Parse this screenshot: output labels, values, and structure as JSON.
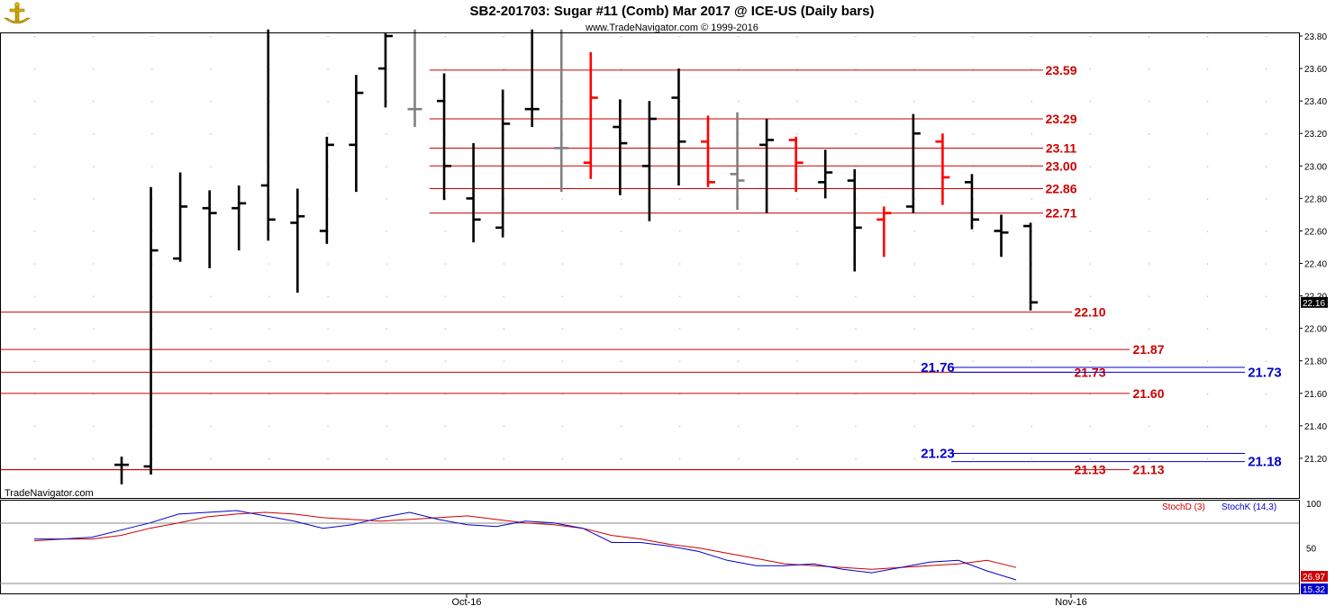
{
  "title": "SB2-201703:  Sugar #11 (Comb) Mar 2017 @ ICE-US  (Daily bars)",
  "subtitle": "www.TradeNavigator.com © 1999-2016",
  "watermark": "TradeNavigator.com",
  "colors": {
    "up_bar": "#000000",
    "down_bar": "#ff0000",
    "neutral_bar": "#808080",
    "red_line": "#cc0000",
    "blue_line": "#0000cc",
    "grid_dot": "#b0b0b0"
  },
  "chart_data": [
    {
      "type": "ohlc",
      "ylim": [
        21.03,
        23.84
      ],
      "y_ticks": [
        "23.80",
        "23.60",
        "23.40",
        "23.20",
        "23.00",
        "22.80",
        "22.60",
        "22.40",
        "22.20",
        "22.00",
        "21.80",
        "21.60",
        "21.40",
        "21.20"
      ],
      "x_ticks": [
        "Oct-16",
        "Nov-16"
      ],
      "last_price": "22.16",
      "bars": [
        {
          "o": 21.16,
          "h": 21.21,
          "l": 21.04,
          "c": 21.16,
          "color": "black"
        },
        {
          "o": 21.15,
          "h": 22.87,
          "l": 21.1,
          "c": 22.48,
          "color": "black"
        },
        {
          "o": 22.43,
          "h": 22.96,
          "l": 22.41,
          "c": 22.75,
          "color": "black"
        },
        {
          "o": 22.74,
          "h": 22.85,
          "l": 22.37,
          "c": 22.71,
          "color": "black"
        },
        {
          "o": 22.74,
          "h": 22.88,
          "l": 22.48,
          "c": 22.77,
          "color": "black"
        },
        {
          "o": 22.88,
          "h": 23.84,
          "l": 22.54,
          "c": 22.67,
          "color": "black"
        },
        {
          "o": 22.65,
          "h": 22.86,
          "l": 22.22,
          "c": 22.69,
          "color": "black"
        },
        {
          "o": 22.6,
          "h": 23.18,
          "l": 22.52,
          "c": 23.13,
          "color": "black"
        },
        {
          "o": 23.13,
          "h": 23.56,
          "l": 22.84,
          "c": 23.45,
          "color": "black"
        },
        {
          "o": 23.6,
          "h": 23.82,
          "l": 23.36,
          "c": 23.8,
          "color": "black"
        },
        {
          "o": 23.35,
          "h": 23.84,
          "l": 23.24,
          "c": 23.35,
          "color": "gray"
        },
        {
          "o": 23.4,
          "h": 23.57,
          "l": 22.79,
          "c": 23.0,
          "color": "black"
        },
        {
          "o": 22.8,
          "h": 23.14,
          "l": 22.53,
          "c": 22.67,
          "color": "black"
        },
        {
          "o": 22.62,
          "h": 23.47,
          "l": 22.56,
          "c": 23.26,
          "color": "black"
        },
        {
          "o": 23.35,
          "h": 23.84,
          "l": 23.24,
          "c": 23.35,
          "color": "black"
        },
        {
          "o": 23.11,
          "h": 23.84,
          "l": 22.84,
          "c": 23.11,
          "color": "gray"
        },
        {
          "o": 23.02,
          "h": 23.7,
          "l": 22.92,
          "c": 23.42,
          "color": "red"
        },
        {
          "o": 23.24,
          "h": 23.41,
          "l": 22.82,
          "c": 23.14,
          "color": "black"
        },
        {
          "o": 23.0,
          "h": 23.4,
          "l": 22.66,
          "c": 23.29,
          "color": "black"
        },
        {
          "o": 23.42,
          "h": 23.6,
          "l": 22.88,
          "c": 23.15,
          "color": "black"
        },
        {
          "o": 23.15,
          "h": 23.31,
          "l": 22.87,
          "c": 22.9,
          "color": "red"
        },
        {
          "o": 22.95,
          "h": 23.33,
          "l": 22.73,
          "c": 22.91,
          "color": "gray"
        },
        {
          "o": 23.13,
          "h": 23.29,
          "l": 22.71,
          "c": 23.16,
          "color": "black"
        },
        {
          "o": 23.16,
          "h": 23.18,
          "l": 22.84,
          "c": 23.02,
          "color": "red"
        },
        {
          "o": 22.9,
          "h": 23.1,
          "l": 22.8,
          "c": 22.96,
          "color": "black"
        },
        {
          "o": 22.91,
          "h": 22.98,
          "l": 22.35,
          "c": 22.62,
          "color": "black"
        },
        {
          "o": 22.67,
          "h": 22.75,
          "l": 22.44,
          "c": 22.71,
          "color": "red"
        },
        {
          "o": 22.75,
          "h": 23.32,
          "l": 22.71,
          "c": 23.2,
          "color": "black"
        },
        {
          "o": 23.15,
          "h": 23.2,
          "l": 22.76,
          "c": 22.93,
          "color": "red"
        },
        {
          "o": 22.9,
          "h": 22.95,
          "l": 22.61,
          "c": 22.67,
          "color": "black"
        },
        {
          "o": 22.6,
          "h": 22.7,
          "l": 22.44,
          "c": 22.59,
          "color": "black"
        },
        {
          "o": 22.63,
          "h": 22.65,
          "l": 22.11,
          "c": 22.16,
          "color": "black"
        }
      ],
      "levels": [
        {
          "value": 23.59,
          "label": "23.59",
          "color": "red",
          "start_bar": 10.5,
          "label_slot": "inner"
        },
        {
          "value": 23.29,
          "label": "23.29",
          "color": "red",
          "start_bar": 10.5,
          "label_slot": "inner"
        },
        {
          "value": 23.11,
          "label": "23.11",
          "color": "red",
          "start_bar": 10.5,
          "label_slot": "inner"
        },
        {
          "value": 23.0,
          "label": "23.00",
          "color": "red",
          "start_bar": 10.5,
          "label_slot": "inner"
        },
        {
          "value": 22.86,
          "label": "22.86",
          "color": "red",
          "start_bar": 10.5,
          "label_slot": "inner"
        },
        {
          "value": 22.71,
          "label": "22.71",
          "color": "red",
          "start_bar": 10.5,
          "label_slot": "inner"
        },
        {
          "value": 22.1,
          "label": "22.10",
          "color": "red",
          "start_bar": -5,
          "label_slot": "mid"
        },
        {
          "value": 21.87,
          "label": "21.87",
          "color": "red",
          "start_bar": -5,
          "label_slot": "outer"
        },
        {
          "value": 21.73,
          "label": "21.73",
          "color": "red",
          "start_bar": -5,
          "label_slot": "mid"
        },
        {
          "value": 21.6,
          "label": "21.60",
          "color": "red",
          "start_bar": -5,
          "label_slot": "outer"
        },
        {
          "value": 21.13,
          "label": "21.13",
          "color": "red",
          "start_bar": -5,
          "label_slot": "mid"
        },
        {
          "value": 21.13,
          "label": "21.13",
          "color": "red",
          "start_bar": -5,
          "label_slot": "outer"
        },
        {
          "value": 21.76,
          "label": "21.76",
          "color": "blue",
          "start_bar": 28.3,
          "label_slot": "blue_left"
        },
        {
          "value": 21.73,
          "label": "21.73",
          "color": "blue",
          "start_bar": 28.3,
          "label_slot": "blue_right"
        },
        {
          "value": 21.23,
          "label": "21.23",
          "color": "blue",
          "start_bar": 28.3,
          "label_slot": "blue_left"
        },
        {
          "value": 21.18,
          "label": "21.18",
          "color": "blue",
          "start_bar": 28.3,
          "label_slot": "blue_right"
        }
      ]
    },
    {
      "type": "line",
      "y_ticks": [
        "100",
        "50"
      ],
      "ylim": [
        0,
        100
      ],
      "legend": [
        {
          "name": "StochD (3)",
          "color": "red"
        },
        {
          "name": "StochK (14,3)",
          "color": "blue"
        }
      ],
      "last_values": {
        "stochD": "26.97",
        "stochK": "15.32"
      },
      "series": [
        {
          "name": "StochD (3)",
          "color": "red",
          "values": [
            58,
            60,
            60,
            64,
            72,
            78,
            85,
            88,
            90,
            88,
            84,
            82,
            80,
            82,
            84,
            86,
            82,
            78,
            76,
            72,
            64,
            60,
            54,
            50,
            44,
            38,
            32,
            30,
            28,
            26,
            28,
            30,
            32,
            36,
            28
          ]
        },
        {
          "name": "StochK (14,3)",
          "color": "blue",
          "values": [
            60,
            60,
            62,
            70,
            78,
            88,
            90,
            92,
            86,
            80,
            72,
            76,
            84,
            90,
            82,
            76,
            74,
            80,
            78,
            72,
            56,
            56,
            52,
            46,
            36,
            30,
            30,
            32,
            26,
            22,
            28,
            34,
            36,
            24,
            14
          ]
        }
      ]
    }
  ]
}
